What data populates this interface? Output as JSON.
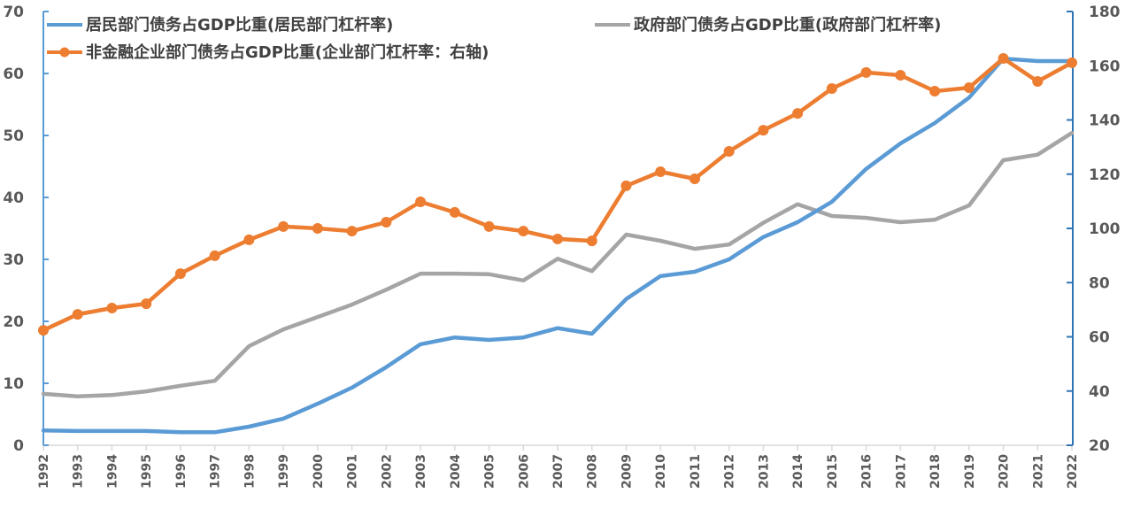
{
  "chart_data": {
    "type": "line",
    "title": "",
    "xlabel": "",
    "ylabel_left": "",
    "ylabel_right": "",
    "grid": false,
    "legend_position": "top",
    "x": [
      "1992",
      "1993",
      "1994",
      "1995",
      "1996",
      "1997",
      "1998",
      "1999",
      "2000",
      "2001",
      "2002",
      "2003",
      "2004",
      "2005",
      "2006",
      "2007",
      "2008",
      "2009",
      "2010",
      "2011",
      "2012",
      "2013",
      "2014",
      "2015",
      "2016",
      "2017",
      "2018",
      "2019",
      "2020",
      "2021",
      "2022"
    ],
    "left_axis": {
      "ylim": [
        0,
        70
      ],
      "ticks": [
        "0",
        "10",
        "20",
        "30",
        "40",
        "50",
        "60",
        "70"
      ],
      "color": "#5B9BD5"
    },
    "right_axis": {
      "ylim": [
        20,
        180
      ],
      "ticks": [
        "20",
        "40",
        "60",
        "80",
        "100",
        "120",
        "140",
        "160",
        "180"
      ],
      "color": "#2E75B6"
    },
    "series": [
      {
        "name": "居民部门债务占GDP比重(居民部门杠杆率)",
        "axis": "left",
        "color": "#5B9BD5",
        "marker": false,
        "values": [
          2.4,
          2.3,
          2.3,
          2.3,
          2.1,
          2.1,
          3.0,
          4.3,
          6.7,
          9.3,
          12.6,
          16.3,
          17.4,
          17.0,
          17.4,
          18.9,
          18.0,
          23.6,
          27.3,
          28.0,
          30.0,
          33.6,
          36.0,
          39.3,
          44.6,
          48.7,
          52.0,
          56.1,
          62.4,
          62.0,
          62.0
        ]
      },
      {
        "name": "政府部门债务占GDP比重(政府部门杠杆率)",
        "axis": "left",
        "color": "#A5A5A5",
        "marker": false,
        "values": [
          8.3,
          7.9,
          8.1,
          8.7,
          9.6,
          10.4,
          16.0,
          18.7,
          20.7,
          22.7,
          25.1,
          27.7,
          27.7,
          27.6,
          26.6,
          30.1,
          28.1,
          34.0,
          33.0,
          31.7,
          32.4,
          35.9,
          38.9,
          37.0,
          36.7,
          36.0,
          36.4,
          38.7,
          46.0,
          46.9,
          50.4
        ]
      },
      {
        "name": "非金融企业部门债务占GDP比重(企业部门杠杆率：右轴)",
        "axis": "right",
        "color": "#ED7D31",
        "marker": true,
        "values": [
          62.4,
          68.3,
          70.6,
          72.2,
          83.3,
          89.9,
          95.8,
          100.7,
          100.0,
          99.0,
          102.3,
          109.8,
          105.9,
          100.7,
          99.0,
          96.1,
          95.4,
          115.7,
          120.9,
          118.3,
          128.4,
          136.2,
          142.4,
          151.6,
          157.5,
          156.5,
          150.6,
          151.9,
          162.7,
          154.2,
          161.1
        ]
      }
    ]
  }
}
